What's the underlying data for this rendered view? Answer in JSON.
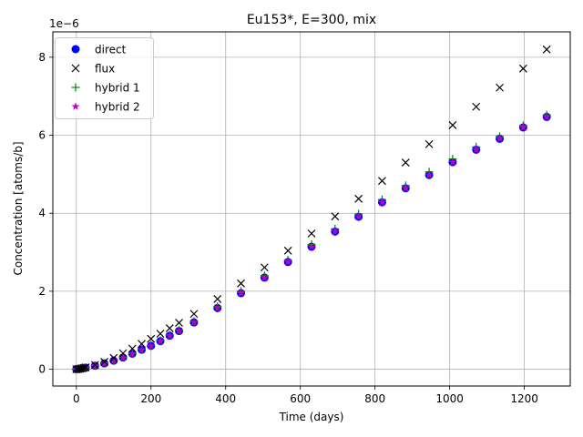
{
  "chart_data": {
    "type": "scatter",
    "title": "Eu153*, E=300, mix",
    "xlabel": "Time (days)",
    "ylabel": "Concentration [atoms/b]",
    "y_offset_text": "1e−6",
    "xlim": [
      -63,
      1323
    ],
    "ylim": [
      -4.3e-07,
      8.65e-06
    ],
    "xticks": [
      0,
      200,
      400,
      600,
      800,
      1000,
      1200
    ],
    "xtick_labels": [
      "0",
      "200",
      "400",
      "600",
      "800",
      "1000",
      "1200"
    ],
    "yticks": [
      0,
      2e-06,
      4e-06,
      6e-06,
      8e-06
    ],
    "ytick_labels": [
      "0",
      "2",
      "4",
      "6",
      "8"
    ],
    "grid": true,
    "legend_position": "top-left",
    "x": [
      0,
      5,
      10,
      15,
      20,
      25,
      50,
      75,
      100,
      125,
      150,
      175,
      200,
      225,
      250,
      275,
      315,
      378,
      441,
      504,
      567,
      630,
      693,
      756,
      819,
      882,
      945,
      1008,
      1071,
      1134,
      1197,
      1260
    ],
    "series": [
      {
        "name": "direct",
        "marker": "circle",
        "color": "#0000ff",
        "values": [
          0,
          5e-09,
          1.2e-08,
          2e-08,
          3e-08,
          4e-08,
          9e-08,
          1.5e-07,
          2.2e-07,
          3e-07,
          4e-07,
          5e-07,
          6e-07,
          7.2e-07,
          8.6e-07,
          9.8e-07,
          1.2e-06,
          1.57e-06,
          1.95e-06,
          2.35e-06,
          2.75e-06,
          3.14e-06,
          3.53e-06,
          3.91e-06,
          4.28e-06,
          4.64e-06,
          4.98e-06,
          5.31e-06,
          5.63e-06,
          5.91e-06,
          6.2e-06,
          6.47e-06
        ]
      },
      {
        "name": "flux",
        "marker": "x",
        "color": "#000000",
        "values": [
          0,
          6e-09,
          1.5e-08,
          2.5e-08,
          3.6e-08,
          4.8e-08,
          1.1e-07,
          1.9e-07,
          2.9e-07,
          4.1e-07,
          5.3e-07,
          6.5e-07,
          7.8e-07,
          9.1e-07,
          1.05e-06,
          1.19e-06,
          1.42e-06,
          1.8e-06,
          2.2e-06,
          2.61e-06,
          3.04e-06,
          3.48e-06,
          3.92e-06,
          4.37e-06,
          4.83e-06,
          5.3e-06,
          5.77e-06,
          6.26e-06,
          6.73e-06,
          7.22e-06,
          7.71e-06,
          8.2e-06
        ]
      },
      {
        "name": "hybrid 1",
        "marker": "plus",
        "color": "#008000",
        "values": [
          0,
          5e-09,
          1.2e-08,
          2e-08,
          3e-08,
          4.1e-08,
          9.2e-08,
          1.55e-07,
          2.25e-07,
          3.05e-07,
          4.05e-07,
          5.1e-07,
          6.15e-07,
          7.35e-07,
          8.8e-07,
          1e-06,
          1.23e-06,
          1.61e-06,
          2e-06,
          2.4e-06,
          2.8e-06,
          3.2e-06,
          3.6e-06,
          3.98e-06,
          4.35e-06,
          4.71e-06,
          5.06e-06,
          5.39e-06,
          5.7e-06,
          5.97e-06,
          6.25e-06,
          6.52e-06
        ]
      },
      {
        "name": "hybrid 2",
        "marker": "star",
        "color": "#bf00bf",
        "values": [
          0,
          5e-09,
          1.2e-08,
          2e-08,
          3e-08,
          4e-08,
          9e-08,
          1.5e-07,
          2.2e-07,
          3e-07,
          4e-07,
          5e-07,
          6e-07,
          7.2e-07,
          8.6e-07,
          9.8e-07,
          1.2e-06,
          1.57e-06,
          1.95e-06,
          2.35e-06,
          2.75e-06,
          3.14e-06,
          3.53e-06,
          3.91e-06,
          4.28e-06,
          4.64e-06,
          4.98e-06,
          5.31e-06,
          5.63e-06,
          5.91e-06,
          6.2e-06,
          6.47e-06
        ]
      }
    ]
  }
}
